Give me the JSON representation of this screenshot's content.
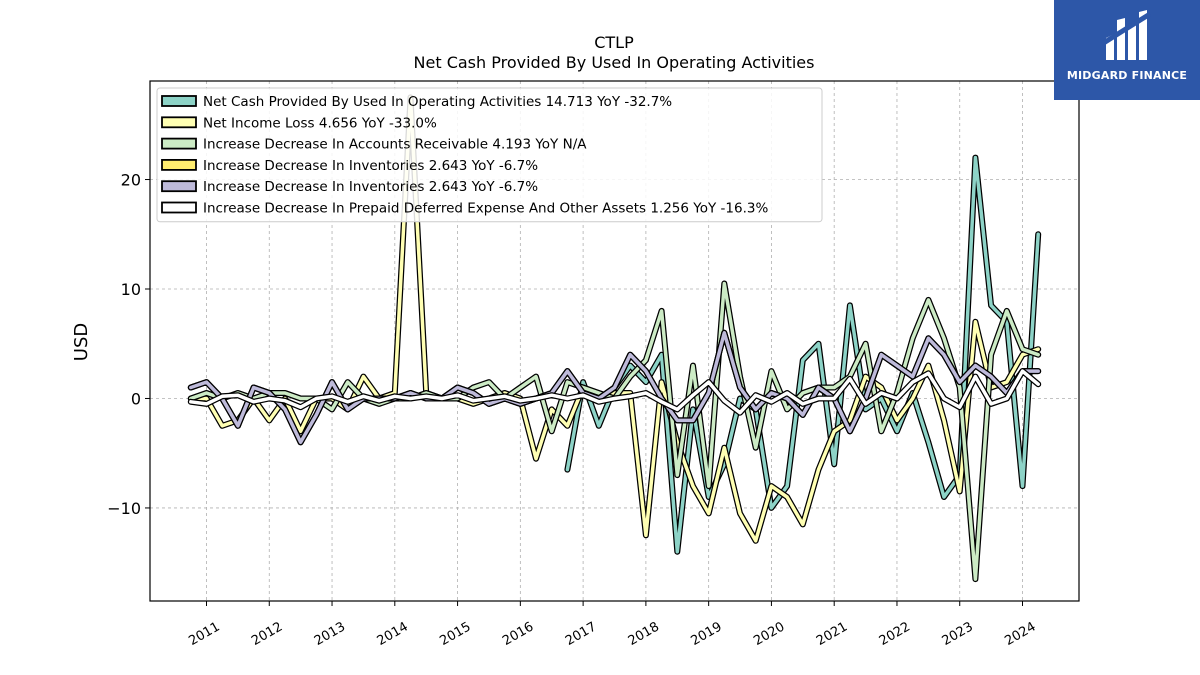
{
  "chart_data": {
    "type": "line",
    "title": "CTLP",
    "subtitle": "Net Cash Provided By Used In Operating Activities",
    "ylabel": "USD",
    "xlabel": "",
    "ylim": [
      -18.5,
      29
    ],
    "xlim": [
      2010.1,
      2024.9
    ],
    "yticks": [
      -10,
      0,
      10,
      20
    ],
    "xticks": [
      "2011",
      "2012",
      "2013",
      "2014",
      "2015",
      "2016",
      "2017",
      "2018",
      "2019",
      "2020",
      "2021",
      "2022",
      "2023",
      "2024"
    ],
    "grid": true,
    "legend_position": "top-left",
    "series": [
      {
        "name": "Net Cash Provided By Used In Operating Activities  14.713 YoY -32.7%",
        "color": "#8dd3c7",
        "x": [
          2016.75,
          2017.0,
          2017.25,
          2017.5,
          2017.75,
          2018.0,
          2018.25,
          2018.5,
          2018.75,
          2019.0,
          2019.25,
          2019.5,
          2019.75,
          2020.0,
          2020.25,
          2020.5,
          2020.75,
          2021.0,
          2021.25,
          2021.5,
          2021.75,
          2022.0,
          2022.25,
          2022.5,
          2022.75,
          2023.0,
          2023.25,
          2023.5,
          2023.75,
          2024.0,
          2024.25
        ],
        "y": [
          -6.5,
          1.5,
          -2.5,
          1.0,
          3.0,
          1.5,
          4.0,
          -14.0,
          -1.0,
          -9.0,
          -6.0,
          0.0,
          -1.0,
          -10.0,
          -8.0,
          3.5,
          5.0,
          -6.0,
          8.5,
          -1.0,
          0.0,
          -3.0,
          0.5,
          -4.0,
          -9.0,
          -7.0,
          22.0,
          8.5,
          7.0,
          -8.0,
          15.0
        ]
      },
      {
        "name": "Net Income Loss  4.656 YoY -33.0%",
        "color": "#ffffb3",
        "x": [
          2010.75,
          2011.0,
          2011.25,
          2011.5,
          2011.75,
          2012.0,
          2012.25,
          2012.5,
          2012.75,
          2013.0,
          2013.25,
          2013.5,
          2013.75,
          2014.0,
          2014.25,
          2014.5,
          2014.75,
          2015.0,
          2015.25,
          2015.5,
          2015.75,
          2016.0,
          2016.25,
          2016.5,
          2016.75,
          2017.0,
          2017.25,
          2017.5,
          2017.75,
          2018.0,
          2018.25,
          2018.5,
          2018.75,
          2019.0,
          2019.25,
          2019.5,
          2019.75,
          2020.0,
          2020.25,
          2020.5,
          2020.75,
          2021.0,
          2021.25,
          2021.5,
          2021.75,
          2022.0,
          2022.25,
          2022.5,
          2022.75,
          2023.0,
          2023.25,
          2023.5,
          2023.75,
          2024.0,
          2024.25
        ],
        "y": [
          0.0,
          0.0,
          -2.5,
          -2.0,
          0.0,
          -2.0,
          0.0,
          -3.0,
          0.0,
          0.0,
          -1.0,
          2.0,
          0.0,
          0.5,
          27.5,
          0.5,
          0.0,
          0.0,
          -0.5,
          0.0,
          0.5,
          0.0,
          -5.5,
          -1.0,
          -2.5,
          1.0,
          0.0,
          0.5,
          0.5,
          -12.5,
          1.5,
          -4.0,
          -8.0,
          -10.5,
          -4.5,
          -10.5,
          -13.0,
          -8.0,
          -9.0,
          -11.5,
          -6.5,
          -3.0,
          -2.0,
          2.0,
          1.0,
          -2.0,
          0.0,
          3.0,
          -2.0,
          -8.5,
          7.0,
          1.0,
          1.5,
          4.0,
          4.5
        ]
      },
      {
        "name": "Increase Decrease In Accounts Receivable  4.193 YoY N/A",
        "color": "#ccebc5",
        "x": [
          2010.75,
          2011.0,
          2011.25,
          2011.5,
          2011.75,
          2012.0,
          2012.25,
          2012.5,
          2012.75,
          2013.0,
          2013.25,
          2013.5,
          2013.75,
          2014.0,
          2014.25,
          2014.5,
          2014.75,
          2015.0,
          2015.25,
          2015.5,
          2015.75,
          2016.0,
          2016.25,
          2016.5,
          2016.75,
          2017.0,
          2017.25,
          2017.5,
          2017.75,
          2018.0,
          2018.25,
          2018.5,
          2018.75,
          2019.0,
          2019.25,
          2019.5,
          2019.75,
          2020.0,
          2020.25,
          2020.5,
          2020.75,
          2021.0,
          2021.25,
          2021.5,
          2021.75,
          2022.0,
          2022.25,
          2022.5,
          2022.75,
          2023.0,
          2023.25,
          2023.5,
          2023.75,
          2024.0,
          2024.25
        ],
        "y": [
          0.0,
          0.5,
          0.0,
          0.5,
          0.0,
          0.5,
          0.5,
          0.0,
          0.0,
          -1.0,
          1.5,
          0.0,
          -0.5,
          0.0,
          0.0,
          0.5,
          0.0,
          0.0,
          1.0,
          1.5,
          0.0,
          1.0,
          2.0,
          -3.0,
          1.5,
          1.0,
          0.5,
          0.0,
          2.0,
          3.5,
          8.0,
          -7.0,
          3.0,
          -8.0,
          10.5,
          2.0,
          -4.5,
          2.5,
          -1.0,
          0.5,
          1.0,
          1.0,
          2.0,
          5.0,
          -3.0,
          0.5,
          5.5,
          9.0,
          5.5,
          1.0,
          -16.5,
          4.0,
          8.0,
          4.5,
          4.0
        ]
      },
      {
        "name": "Increase Decrease In Inventories  2.643 YoY -6.7%",
        "color": "#ffed6f",
        "x": [
          2010.75,
          2011.0,
          2011.25,
          2011.5,
          2011.75,
          2012.0,
          2012.25,
          2012.5,
          2012.75,
          2013.0,
          2013.25,
          2013.5,
          2013.75,
          2014.0,
          2014.25,
          2014.5,
          2014.75,
          2015.0,
          2015.25,
          2015.5,
          2015.75,
          2016.0,
          2016.25,
          2016.5,
          2016.75,
          2017.0,
          2017.25,
          2017.5,
          2017.75,
          2018.0,
          2018.25,
          2018.5,
          2018.75,
          2019.0,
          2019.25,
          2019.5,
          2019.75,
          2020.0,
          2020.25,
          2020.5,
          2020.75,
          2021.0,
          2021.25,
          2021.5,
          2021.75,
          2022.0,
          2022.25,
          2022.5,
          2022.75,
          2023.0,
          2023.25,
          2023.5,
          2023.75,
          2024.0,
          2024.25
        ],
        "y": [
          1.0,
          1.5,
          0.0,
          -2.5,
          1.0,
          0.5,
          -1.0,
          -4.0,
          -1.5,
          1.5,
          -1.0,
          0.0,
          0.0,
          0.0,
          0.5,
          0.0,
          0.0,
          1.0,
          0.5,
          -0.5,
          0.0,
          -0.5,
          0.0,
          0.5,
          2.5,
          0.5,
          0.0,
          1.0,
          4.0,
          2.5,
          0.0,
          -2.0,
          -2.0,
          0.5,
          6.0,
          1.0,
          -1.0,
          0.5,
          0.0,
          -1.5,
          1.0,
          0.0,
          -3.0,
          0.0,
          4.0,
          3.0,
          2.0,
          5.5,
          4.0,
          1.5,
          3.0,
          2.0,
          0.5,
          2.5,
          2.5
        ]
      },
      {
        "name": "Increase Decrease In Inventories  2.643 YoY -6.7%",
        "color": "#bebada",
        "x": [
          2010.75,
          2011.0,
          2011.25,
          2011.5,
          2011.75,
          2012.0,
          2012.25,
          2012.5,
          2012.75,
          2013.0,
          2013.25,
          2013.5,
          2013.75,
          2014.0,
          2014.25,
          2014.5,
          2014.75,
          2015.0,
          2015.25,
          2015.5,
          2015.75,
          2016.0,
          2016.25,
          2016.5,
          2016.75,
          2017.0,
          2017.25,
          2017.5,
          2017.75,
          2018.0,
          2018.25,
          2018.5,
          2018.75,
          2019.0,
          2019.25,
          2019.5,
          2019.75,
          2020.0,
          2020.25,
          2020.5,
          2020.75,
          2021.0,
          2021.25,
          2021.5,
          2021.75,
          2022.0,
          2022.25,
          2022.5,
          2022.75,
          2023.0,
          2023.25,
          2023.5,
          2023.75,
          2024.0,
          2024.25
        ],
        "y": [
          1.0,
          1.5,
          0.0,
          -2.5,
          1.0,
          0.5,
          -1.0,
          -4.0,
          -1.5,
          1.5,
          -1.0,
          0.0,
          0.0,
          0.0,
          0.5,
          0.0,
          0.0,
          1.0,
          0.5,
          -0.5,
          0.0,
          -0.5,
          0.0,
          0.5,
          2.5,
          0.5,
          0.0,
          1.0,
          4.0,
          2.5,
          0.0,
          -2.0,
          -2.0,
          0.5,
          6.0,
          1.0,
          -1.0,
          0.5,
          0.0,
          -1.5,
          1.0,
          0.0,
          -3.0,
          0.0,
          4.0,
          3.0,
          2.0,
          5.5,
          4.0,
          1.5,
          3.0,
          2.0,
          0.5,
          2.5,
          2.5
        ]
      },
      {
        "name": "Increase Decrease In Prepaid Deferred Expense And Other Assets  1.256 YoY -16.3%",
        "color": "#ffffff",
        "x": [
          2010.75,
          2011.0,
          2011.25,
          2011.5,
          2011.75,
          2012.0,
          2012.25,
          2012.5,
          2012.75,
          2013.0,
          2013.25,
          2013.5,
          2013.75,
          2014.0,
          2014.25,
          2014.5,
          2014.75,
          2015.0,
          2015.25,
          2015.5,
          2015.75,
          2016.0,
          2016.25,
          2016.5,
          2016.75,
          2017.0,
          2017.25,
          2017.5,
          2017.75,
          2018.0,
          2018.25,
          2018.5,
          2018.75,
          2019.0,
          2019.25,
          2019.5,
          2019.75,
          2020.0,
          2020.25,
          2020.5,
          2020.75,
          2021.0,
          2021.25,
          2021.5,
          2021.75,
          2022.0,
          2022.25,
          2022.5,
          2022.75,
          2023.0,
          2023.25,
          2023.5,
          2023.75,
          2024.0,
          2024.25
        ],
        "y": [
          -0.3,
          -0.5,
          0.2,
          0.3,
          -0.3,
          0.0,
          -0.2,
          -0.8,
          0.0,
          0.2,
          -0.3,
          0.2,
          -0.2,
          0.2,
          0.0,
          0.2,
          0.0,
          0.3,
          -0.2,
          0.0,
          0.2,
          -0.2,
          0.0,
          0.3,
          0.0,
          0.3,
          -0.3,
          0.0,
          0.2,
          0.5,
          -0.3,
          -1.0,
          0.3,
          1.5,
          -0.2,
          -1.3,
          0.3,
          -0.3,
          0.5,
          -0.5,
          0.0,
          0.0,
          1.8,
          -0.5,
          0.5,
          0.0,
          1.5,
          2.3,
          0.0,
          -0.8,
          2.0,
          -0.5,
          0.0,
          2.5,
          1.3
        ]
      }
    ]
  },
  "logo": {
    "name": "MIDGARD FINANCE"
  }
}
